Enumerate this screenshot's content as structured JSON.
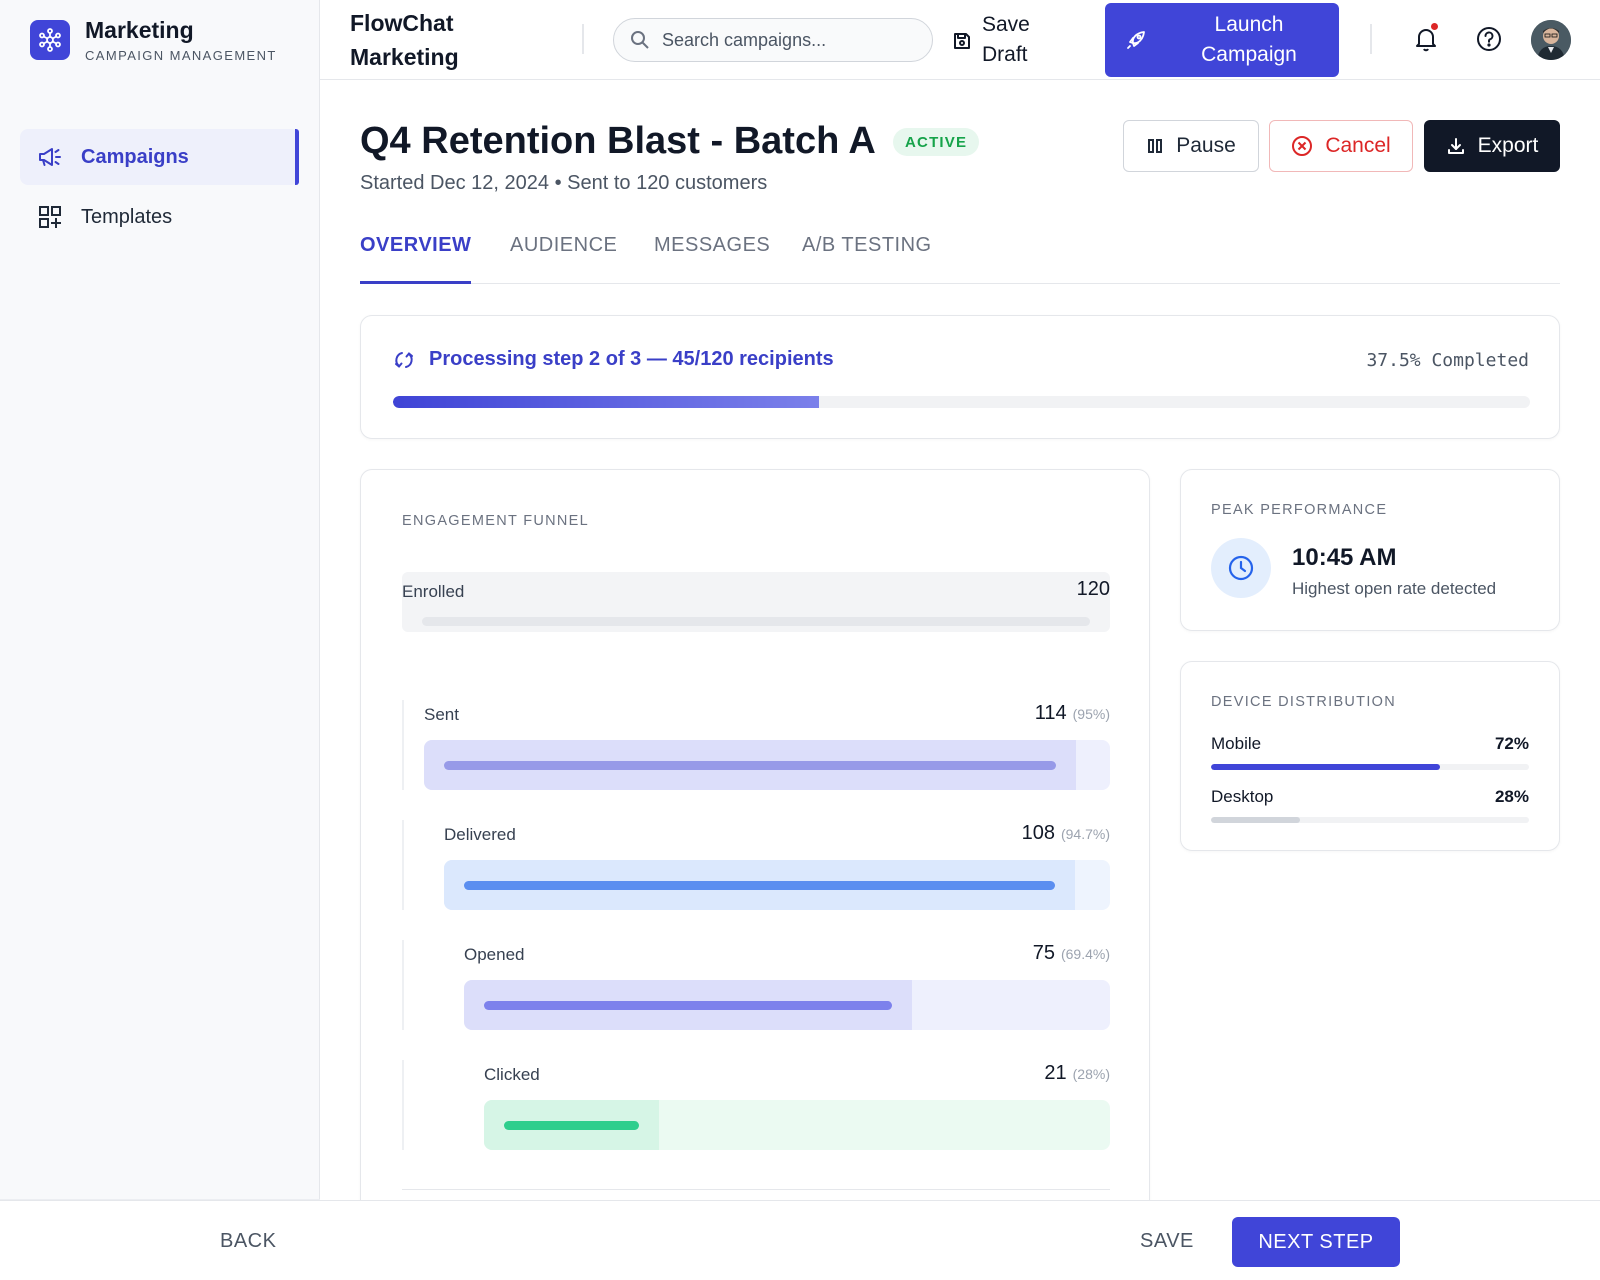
{
  "brand": {
    "title": "Marketing",
    "subtitle": "CAMPAIGN MANAGEMENT",
    "logo_icon": "network-icon",
    "accent_color": "#4045d8"
  },
  "sidebar": {
    "items": [
      {
        "label": "Campaigns",
        "icon": "megaphone-icon",
        "active": true
      },
      {
        "label": "Templates",
        "icon": "grid-plus-icon",
        "active": false
      }
    ]
  },
  "header": {
    "app_title": "FlowChat Marketing",
    "search": {
      "placeholder": "Search campaigns...",
      "value": ""
    },
    "save_draft_label": "Save Draft",
    "launch_label": "Launch Campaign",
    "notification_badge": true
  },
  "campaign": {
    "title": "Q4 Retention Blast - Batch A",
    "status": "ACTIVE",
    "subtitle": "Started Dec 12, 2024 • Sent to 120 customers",
    "actions": {
      "pause": "Pause",
      "cancel": "Cancel",
      "export": "Export"
    }
  },
  "tabs": [
    {
      "label": "OVERVIEW",
      "active": true
    },
    {
      "label": "AUDIENCE",
      "active": false
    },
    {
      "label": "MESSAGES",
      "active": false
    },
    {
      "label": "A/B TESTING",
      "active": false
    }
  ],
  "progress": {
    "label": "Processing step 2 of 3 — 45/120 recipients",
    "percent_text": "37.5% Completed",
    "fraction": 0.375
  },
  "funnel": {
    "title": "ENGAGEMENT FUNNEL",
    "stages": [
      {
        "name": "Enrolled",
        "count": "120",
        "pct": "",
        "fraction": 1.0,
        "bar_color": "#e5e7eb",
        "bg_color": "#f3f4f6"
      },
      {
        "name": "Sent",
        "count": "114",
        "pct": "(95%)",
        "fraction": 0.95,
        "bar_color": "#979ae8",
        "bg_color": "#dcdefa"
      },
      {
        "name": "Delivered",
        "count": "108",
        "pct": "(94.7%)",
        "fraction": 0.947,
        "bar_color": "#5b8ef0",
        "bg_color": "#dbe8fd"
      },
      {
        "name": "Opened",
        "count": "75",
        "pct": "(69.4%)",
        "fraction": 0.694,
        "bar_color": "#7d81ec",
        "bg_color": "#dcdefa"
      },
      {
        "name": "Clicked",
        "count": "21",
        "pct": "(28%)",
        "fraction": 0.28,
        "bar_color": "#2fce8d",
        "bg_color": "#d6f5e6"
      }
    ]
  },
  "peak": {
    "title": "PEAK PERFORMANCE",
    "time": "10:45 AM",
    "description": "Highest open rate detected",
    "icon": "clock-icon"
  },
  "devices": {
    "title": "DEVICE DISTRIBUTION",
    "items": [
      {
        "name": "Mobile",
        "value": "72%",
        "fraction": 0.72,
        "color": "#4045d8"
      },
      {
        "name": "Desktop",
        "value": "28%",
        "fraction": 0.28,
        "color": "#d1d5db"
      }
    ]
  },
  "footer": {
    "back_label": "BACK",
    "save_label": "SAVE",
    "next_label": "NEXT STEP"
  }
}
